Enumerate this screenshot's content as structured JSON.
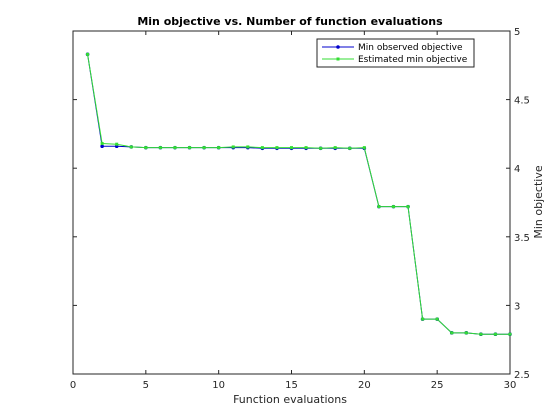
{
  "chart_data": {
    "type": "line",
    "title": "Min objective vs. Number of function evaluations",
    "xlabel": "Function evaluations",
    "ylabel": "Min objective",
    "xlim": [
      0,
      30
    ],
    "ylim": [
      2.5,
      5
    ],
    "xticks": [
      "0",
      "5",
      "10",
      "15",
      "20",
      "25",
      "30"
    ],
    "yticks": [
      "2.5",
      "3",
      "3.5",
      "4",
      "4.5",
      "5"
    ],
    "grid": false,
    "legend_position": "top-right",
    "series": [
      {
        "name": "Min observed objective",
        "color": "#0000cc",
        "marker": "dot",
        "x": [
          1,
          2,
          3,
          4,
          5,
          6,
          7,
          8,
          9,
          10,
          11,
          12,
          13,
          14,
          15,
          16,
          17,
          18,
          19,
          20,
          21,
          22,
          23,
          24,
          25,
          26,
          27,
          28,
          29,
          30
        ],
        "values": [
          4.83,
          4.16,
          4.16,
          4.155,
          4.15,
          4.15,
          4.15,
          4.15,
          4.15,
          4.15,
          4.15,
          4.15,
          4.145,
          4.145,
          4.145,
          4.145,
          4.145,
          4.145,
          4.145,
          4.145,
          3.72,
          3.72,
          3.72,
          2.9,
          2.9,
          2.8,
          2.8,
          2.79,
          2.79,
          2.79
        ]
      },
      {
        "name": "Estimated min objective",
        "color": "#33dd33",
        "marker": "square",
        "x": [
          1,
          2,
          3,
          4,
          5,
          6,
          7,
          8,
          9,
          10,
          11,
          12,
          13,
          14,
          15,
          16,
          17,
          18,
          19,
          20,
          21,
          22,
          23,
          24,
          25,
          26,
          27,
          28,
          29,
          30
        ],
        "values": [
          4.83,
          4.18,
          4.175,
          4.155,
          4.15,
          4.15,
          4.15,
          4.15,
          4.15,
          4.15,
          4.155,
          4.155,
          4.15,
          4.15,
          4.15,
          4.15,
          4.145,
          4.15,
          4.145,
          4.15,
          3.72,
          3.72,
          3.72,
          2.9,
          2.9,
          2.8,
          2.8,
          2.79,
          2.79,
          2.79
        ]
      }
    ]
  }
}
